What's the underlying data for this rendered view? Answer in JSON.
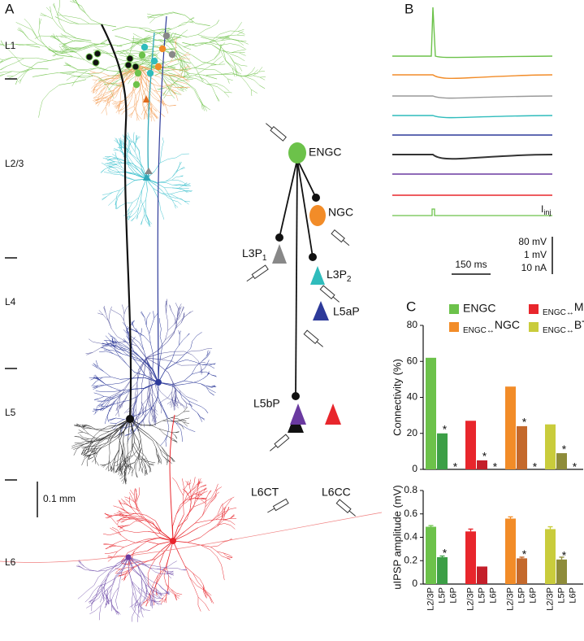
{
  "panels": {
    "a": "A",
    "b": "B",
    "c": "C"
  },
  "panel_a": {
    "layers": [
      "L1",
      "L2/3",
      "L4",
      "L5",
      "L6"
    ],
    "scale_bar": "0.1 mm"
  },
  "diagram": {
    "engc": "ENGC",
    "ngc": "NGC",
    "l3p1": {
      "main": "L3P",
      "sub": "1"
    },
    "l3p2": {
      "main": "L3P",
      "sub": "2"
    },
    "l5ap": "L5aP",
    "l5bp": "L5bP",
    "l6ct": "L6CT",
    "l6cc": "L6CC"
  },
  "panel_b": {
    "stimulus": {
      "main": "I",
      "sub": "inj"
    },
    "scale": [
      "80 mV",
      "1 mV",
      "10 nA"
    ],
    "time": "150 ms"
  },
  "chart_data": [
    {
      "type": "bar",
      "y_label": "Connectivity (%)",
      "ylim": [
        0,
        80
      ],
      "yticks": [
        0,
        20,
        40,
        60,
        80
      ],
      "legend": true,
      "series": [
        {
          "name": "ENGC",
          "colors": [
            "#6cc24a",
            "#3c9f46",
            "#3c9f46"
          ],
          "values": [
            62,
            20,
            0
          ],
          "significance": [
            null,
            "*",
            "*"
          ]
        },
        {
          "name": "ENGC↔MaC",
          "colors": [
            "#e8262c",
            "#c41f2a",
            "#c41f2a"
          ],
          "values": [
            27,
            5,
            0
          ],
          "significance": [
            null,
            "*",
            "*"
          ]
        },
        {
          "name": "ENGC↔NGC",
          "colors": [
            "#f28c28",
            "#c4692c",
            "#c4692c"
          ],
          "values": [
            46,
            24,
            0
          ],
          "significance": [
            null,
            "*",
            "*"
          ]
        },
        {
          "name": "ENGC↔BTC",
          "colors": [
            "#c9cc3c",
            "#8e8c3a",
            "#8e8c3a"
          ],
          "values": [
            25,
            9,
            0
          ],
          "significance": [
            null,
            "*",
            "*"
          ]
        }
      ]
    },
    {
      "type": "bar",
      "y_label": "uIPSP amplitude (mV)",
      "ylim": [
        0,
        0.8
      ],
      "yticks": [
        0,
        0.2,
        0.4,
        0.6,
        0.8
      ],
      "categories": [
        "L2/3P",
        "L5P",
        "L6P"
      ],
      "series": [
        {
          "colors": [
            "#6cc24a",
            "#3c9f46",
            "#3c9f46"
          ],
          "values": [
            0.49,
            0.23,
            null
          ],
          "errors": [
            0.01,
            0.01,
            null
          ],
          "significance": [
            null,
            "*",
            null
          ]
        },
        {
          "colors": [
            "#e8262c",
            "#c41f2a",
            "#c41f2a"
          ],
          "values": [
            0.45,
            0.15,
            null
          ],
          "errors": [
            0.02,
            null,
            null
          ],
          "significance": [
            null,
            null,
            null
          ]
        },
        {
          "colors": [
            "#f28c28",
            "#c4692c",
            "#c4692c"
          ],
          "values": [
            0.56,
            0.22,
            null
          ],
          "errors": [
            0.015,
            0.01,
            null
          ],
          "significance": [
            null,
            "*",
            null
          ]
        },
        {
          "colors": [
            "#c9cc3c",
            "#8e8c3a",
            "#8e8c3a"
          ],
          "values": [
            0.47,
            0.21,
            null
          ],
          "errors": [
            0.02,
            0.02,
            null
          ],
          "significance": [
            null,
            "*",
            null
          ]
        }
      ]
    }
  ]
}
